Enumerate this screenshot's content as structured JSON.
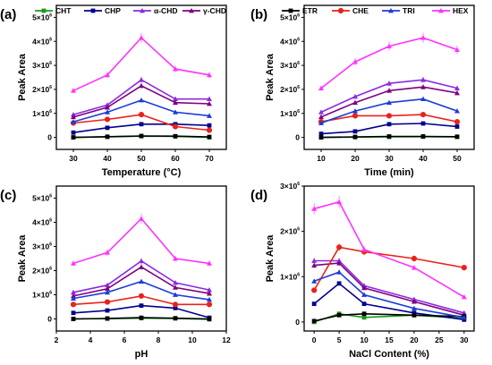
{
  "chart_data": [
    {
      "type": "line",
      "panel_label": "(a)",
      "xlabel": "Temperature (°C)",
      "ylabel": "Peak Area",
      "xlim": [
        25,
        75
      ],
      "ylim": [
        -500000,
        5500000
      ],
      "xticks": [
        30,
        40,
        50,
        60,
        70
      ],
      "yticks": [
        0,
        1000000,
        2000000,
        3000000,
        4000000,
        5000000
      ],
      "legend": "top",
      "x": [
        30,
        40,
        50,
        60,
        70
      ],
      "series": [
        {
          "name": "CHT",
          "color": "#1a9a1a",
          "marker": "square",
          "values": [
            0,
            20000,
            50000,
            40000,
            0
          ]
        },
        {
          "name": "CHP",
          "color": "#00008b",
          "marker": "square",
          "values": [
            200000,
            400000,
            550000,
            550000,
            500000
          ]
        },
        {
          "name": "α-CHD",
          "color": "#8a2be2",
          "marker": "triangle",
          "values": [
            950000,
            1350000,
            2400000,
            1600000,
            1600000
          ]
        },
        {
          "name": "γ-CHD",
          "color": "#800080",
          "marker": "triangle",
          "values": [
            850000,
            1250000,
            2150000,
            1450000,
            1400000
          ]
        },
        {
          "name": "ETR",
          "color": "#000000",
          "marker": "square",
          "values": [
            0,
            30000,
            60000,
            50000,
            20000
          ]
        },
        {
          "name": "CHE",
          "color": "#e8231a",
          "marker": "circle",
          "values": [
            600000,
            750000,
            950000,
            450000,
            300000
          ]
        },
        {
          "name": "TRI",
          "color": "#1e3cd6",
          "marker": "triangle",
          "values": [
            650000,
            1050000,
            1550000,
            1050000,
            900000
          ]
        },
        {
          "name": "HEX",
          "color": "#ff33ff",
          "marker": "triangle",
          "values": [
            1950000,
            2600000,
            4150000,
            2850000,
            2600000
          ]
        }
      ]
    },
    {
      "type": "line",
      "panel_label": "(b)",
      "xlabel": "Time (min)",
      "ylabel": "Peak Area",
      "xlim": [
        5,
        55
      ],
      "ylim": [
        -500000,
        5500000
      ],
      "xticks": [
        10,
        20,
        30,
        40,
        50
      ],
      "yticks": [
        0,
        1000000,
        2000000,
        3000000,
        4000000,
        5000000
      ],
      "legend": "top",
      "x": [
        10,
        20,
        30,
        40,
        50
      ],
      "series": [
        {
          "name": "CHT",
          "color": "#1a9a1a",
          "marker": "square",
          "values": [
            0,
            10000,
            20000,
            30000,
            20000
          ]
        },
        {
          "name": "CHP",
          "color": "#00008b",
          "marker": "square",
          "values": [
            150000,
            250000,
            550000,
            580000,
            450000
          ]
        },
        {
          "name": "α-CHD",
          "color": "#8a2be2",
          "marker": "triangle",
          "values": [
            1050000,
            1700000,
            2250000,
            2400000,
            2050000
          ]
        },
        {
          "name": "γ-CHD",
          "color": "#800080",
          "marker": "triangle",
          "values": [
            850000,
            1450000,
            1950000,
            2100000,
            1850000
          ]
        },
        {
          "name": "ETR",
          "color": "#000000",
          "marker": "square",
          "values": [
            0,
            20000,
            40000,
            40000,
            30000
          ]
        },
        {
          "name": "CHE",
          "color": "#e8231a",
          "marker": "circle",
          "values": [
            650000,
            900000,
            900000,
            950000,
            650000
          ]
        },
        {
          "name": "TRI",
          "color": "#1e3cd6",
          "marker": "triangle",
          "values": [
            600000,
            1100000,
            1450000,
            1600000,
            1100000
          ]
        },
        {
          "name": "HEX",
          "color": "#ff33ff",
          "marker": "triangle",
          "values": [
            2050000,
            3150000,
            3800000,
            4150000,
            3650000
          ]
        }
      ]
    },
    {
      "type": "line",
      "panel_label": "(c)",
      "xlabel": "pH",
      "ylabel": "Peak Area",
      "xlim": [
        2,
        12
      ],
      "ylim": [
        -500000,
        5500000
      ],
      "xticks": [
        2,
        4,
        6,
        8,
        10,
        12
      ],
      "yticks": [
        0,
        1000000,
        2000000,
        3000000,
        4000000,
        5000000
      ],
      "legend": "top",
      "x": [
        3,
        5,
        7,
        9,
        11
      ],
      "series": [
        {
          "name": "CHT",
          "color": "#1a9a1a",
          "marker": "square",
          "values": [
            0,
            10000,
            30000,
            20000,
            -20000
          ]
        },
        {
          "name": "CHP",
          "color": "#00008b",
          "marker": "square",
          "values": [
            250000,
            350000,
            550000,
            450000,
            50000
          ]
        },
        {
          "name": "α-CHD",
          "color": "#8a2be2",
          "marker": "triangle",
          "values": [
            1100000,
            1400000,
            2400000,
            1500000,
            1200000
          ]
        },
        {
          "name": "γ-CHD",
          "color": "#800080",
          "marker": "triangle",
          "values": [
            950000,
            1250000,
            2150000,
            1300000,
            1050000
          ]
        },
        {
          "name": "ETR",
          "color": "#000000",
          "marker": "square",
          "values": [
            0,
            20000,
            50000,
            30000,
            0
          ]
        },
        {
          "name": "CHE",
          "color": "#e8231a",
          "marker": "circle",
          "values": [
            600000,
            700000,
            950000,
            600000,
            600000
          ]
        },
        {
          "name": "TRI",
          "color": "#1e3cd6",
          "marker": "triangle",
          "values": [
            850000,
            1100000,
            1550000,
            1000000,
            800000
          ]
        },
        {
          "name": "HEX",
          "color": "#ff33ff",
          "marker": "triangle",
          "values": [
            2300000,
            2750000,
            4150000,
            2500000,
            2300000
          ]
        }
      ]
    },
    {
      "type": "line",
      "panel_label": "(d)",
      "xlabel": "NaCl Content (%)",
      "ylabel": "Peak Area",
      "xlim": [
        -2,
        32
      ],
      "ylim": [
        -200000,
        3000000
      ],
      "xticks": [
        0,
        5,
        10,
        15,
        20,
        25,
        30
      ],
      "yticks": [
        0,
        1000000,
        2000000,
        3000000
      ],
      "legend": "top",
      "x": [
        0,
        5,
        10,
        20,
        30
      ],
      "series": [
        {
          "name": "CHT",
          "color": "#1a9a1a",
          "marker": "square",
          "values": [
            0,
            180000,
            100000,
            150000,
            80000
          ]
        },
        {
          "name": "CHP",
          "color": "#00008b",
          "marker": "square",
          "values": [
            400000,
            850000,
            400000,
            200000,
            50000
          ]
        },
        {
          "name": "α-CHD",
          "color": "#8a2be2",
          "marker": "triangle",
          "values": [
            1350000,
            1350000,
            800000,
            500000,
            200000
          ]
        },
        {
          "name": "γ-CHD",
          "color": "#800080",
          "marker": "triangle",
          "values": [
            1250000,
            1300000,
            750000,
            450000,
            150000
          ]
        },
        {
          "name": "ETR",
          "color": "#000000",
          "marker": "square",
          "values": [
            20000,
            150000,
            180000,
            150000,
            120000
          ]
        },
        {
          "name": "CHE",
          "color": "#e8231a",
          "marker": "circle",
          "values": [
            700000,
            1650000,
            1550000,
            1400000,
            1200000
          ]
        },
        {
          "name": "TRI",
          "color": "#1e3cd6",
          "marker": "triangle",
          "values": [
            900000,
            1100000,
            600000,
            300000,
            100000
          ]
        },
        {
          "name": "HEX",
          "color": "#ff33ff",
          "marker": "triangle",
          "values": [
            2500000,
            2650000,
            1600000,
            1200000,
            550000
          ]
        }
      ]
    }
  ]
}
